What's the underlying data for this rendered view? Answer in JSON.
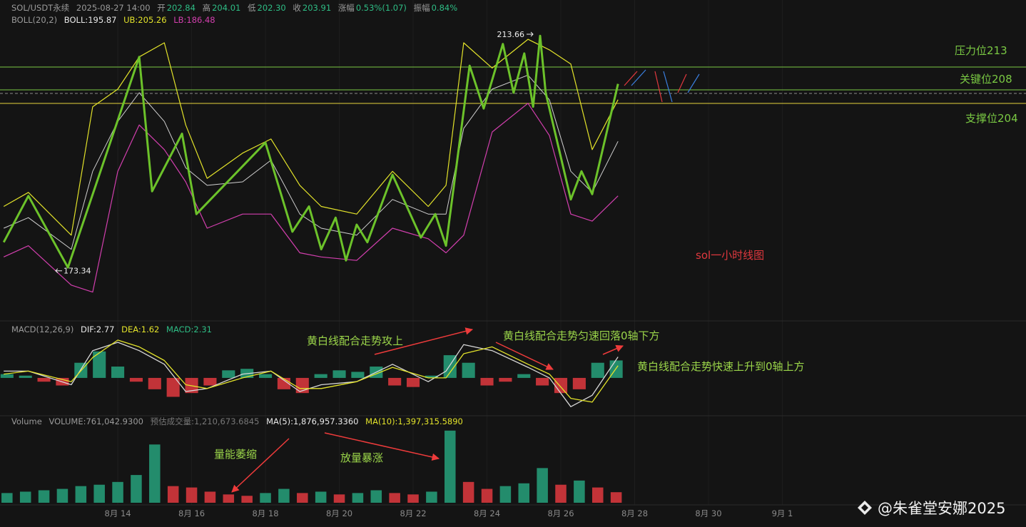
{
  "header": {
    "symbol": "SOL/USDT永续",
    "time": "2025-08-27 14:00",
    "open_label": "开",
    "open": "202.84",
    "high_label": "高",
    "high": "204.01",
    "low_label": "低",
    "low": "202.30",
    "close_label": "收",
    "close": "203.91",
    "change_label": "涨幅",
    "change": "0.53%(1.07)",
    "amplitude_label": "振幅",
    "amplitude": "0.84%"
  },
  "indicators": {
    "boll": "BOLL(20,2)",
    "boll_mid": "BOLL:195.87",
    "boll_ub": "UB:205.26",
    "boll_lb": "LB:186.48",
    "macd": "MACD(12,26,9)",
    "dif": "DIF:2.77",
    "dea": "DEA:1.62",
    "macd_value": "MACD:2.31",
    "volume": "Volume",
    "volume_value": "VOLUME:761,042.9300",
    "volume_est": "预估成交量:1,210,673.6845",
    "ma5": "MA(5):1,876,957.3360",
    "ma10": "MA(10):1,397,315.5890"
  },
  "annotations": {
    "resistance": "压力位213",
    "key": "关键位208",
    "support": "支撑位204",
    "chart_note": "sol一小时线图",
    "macd_up": "黄白线配合走势攻上",
    "macd_down": "黄白线配合走势匀速回落0轴下方",
    "macd_rise": "黄白线配合走势快速上升到0轴上方",
    "volume_shrink": "量能萎缩",
    "volume_surge": "放量暴涨",
    "watermark": "@朱雀堂安娜2025"
  },
  "chart_data": [
    {
      "type": "line",
      "xlim": [
        10.81,
        38.6
      ],
      "ylim": [
        165.4,
        219.5
      ],
      "xticks": [
        {
          "value": 14,
          "label": "8月 14"
        },
        {
          "value": 16,
          "label": "8月 16"
        },
        {
          "value": 18,
          "label": "8月 18"
        },
        {
          "value": 20,
          "label": "8月 20"
        },
        {
          "value": 22,
          "label": "8月 22"
        },
        {
          "value": 24,
          "label": "8月 24"
        },
        {
          "value": 26,
          "label": "8月 26"
        },
        {
          "value": 28,
          "label": "8月 28"
        },
        {
          "value": 30,
          "label": "8月 30"
        },
        {
          "value": 32,
          "label": "9月 1"
        }
      ],
      "series": [
        {
          "color": "#e3e32a",
          "x": [
            10.91,
            11.58,
            12.74,
            13.32,
            14.0,
            14.58,
            15.26,
            15.84,
            16.42,
            17.38,
            18.15,
            18.93,
            19.51,
            20.47,
            21.44,
            22.41,
            22.89,
            23.37,
            24.14,
            25.11,
            25.69,
            26.27,
            26.85,
            27.55
          ],
          "values": [
            184.3,
            186.7,
            179.4,
            201.3,
            204.3,
            209.8,
            212.2,
            198.2,
            189.1,
            193.4,
            195.8,
            187.9,
            184.3,
            183.0,
            190.3,
            184.3,
            187.9,
            212.2,
            207.9,
            212.8,
            211.0,
            208.6,
            194.0,
            202.5
          ]
        },
        {
          "color": "#cfcfcf",
          "x": [
            10.91,
            11.58,
            12.74,
            13.32,
            14.0,
            14.58,
            15.26,
            15.84,
            16.42,
            17.38,
            18.15,
            18.93,
            19.51,
            20.47,
            21.44,
            22.41,
            22.89,
            23.37,
            24.14,
            25.11,
            25.69,
            26.27,
            26.85,
            27.55
          ],
          "values": [
            180.6,
            182.4,
            177.0,
            190.3,
            198.8,
            203.7,
            198.8,
            190.9,
            187.9,
            188.5,
            192.2,
            183.0,
            180.6,
            179.4,
            185.5,
            183.0,
            183.0,
            197.6,
            204.3,
            206.7,
            202.5,
            190.3,
            186.7,
            195.4
          ]
        },
        {
          "color": "#d23fae",
          "x": [
            10.91,
            11.58,
            12.74,
            13.32,
            14.0,
            14.58,
            15.26,
            15.84,
            16.42,
            17.38,
            18.15,
            18.93,
            19.51,
            20.47,
            21.44,
            22.41,
            22.89,
            23.37,
            24.14,
            25.11,
            25.69,
            26.27,
            26.85,
            27.55
          ],
          "values": [
            175.7,
            177.6,
            170.9,
            169.7,
            190.3,
            198.2,
            194.0,
            188.5,
            180.6,
            183.0,
            183.0,
            176.4,
            175.7,
            175.1,
            180.6,
            178.8,
            176.4,
            179.4,
            197.0,
            201.9,
            196.4,
            183.0,
            181.8,
            186.1
          ]
        },
        {
          "color": "#6cc22a",
          "x": [
            10.91,
            11.58,
            12.65,
            14.58,
            14.93,
            15.74,
            16.13,
            18.0,
            18.73,
            19.18,
            19.51,
            19.9,
            20.18,
            20.47,
            20.76,
            21.44,
            22.21,
            22.6,
            22.89,
            23.53,
            23.91,
            24.43,
            24.72,
            25.01,
            25.25,
            25.44,
            25.59,
            26.27,
            26.56,
            26.85,
            27.55
          ],
          "values": [
            178.2,
            186.1,
            173.9,
            209.8,
            186.9,
            196.7,
            183.0,
            195.2,
            180.0,
            184.3,
            177.0,
            182.4,
            175.1,
            181.2,
            178.2,
            189.7,
            179.0,
            183.0,
            177.6,
            208.3,
            201.0,
            212.0,
            203.7,
            210.4,
            201.3,
            213.4,
            203.7,
            185.5,
            190.3,
            186.4,
            205.2
          ]
        }
      ],
      "max_label": {
        "x": 25.44,
        "value": 213.66
      },
      "min_label": {
        "x": 12.51,
        "value": 173.34
      }
    },
    {
      "type": "macd",
      "xlim": [
        10.81,
        38.6
      ],
      "ylim": [
        -5.0,
        6.4
      ],
      "series": [
        {
          "color": "#d8d8d8",
          "x": [
            10.91,
            11.58,
            12.74,
            13.32,
            14.0,
            14.58,
            15.26,
            15.84,
            16.42,
            17.38,
            18.15,
            18.93,
            19.51,
            20.47,
            21.44,
            22.41,
            22.89,
            23.37,
            24.14,
            25.11,
            25.69,
            26.27,
            26.85,
            27.55
          ],
          "values": [
            0.9,
            0.9,
            -0.9,
            3.6,
            4.7,
            3.6,
            1.8,
            -1.8,
            -1.4,
            0.5,
            0.9,
            -1.8,
            -0.9,
            -0.5,
            1.8,
            -0.5,
            0.9,
            4.4,
            3.6,
            1.4,
            0,
            -3.8,
            -2.3,
            2.77
          ]
        },
        {
          "color": "#e3e32a",
          "x": [
            10.91,
            11.58,
            12.74,
            13.32,
            14.0,
            14.58,
            15.26,
            15.84,
            16.42,
            17.38,
            18.15,
            18.93,
            19.51,
            20.47,
            21.44,
            22.41,
            22.89,
            23.37,
            24.14,
            25.11,
            25.69,
            26.27,
            26.85,
            27.55
          ],
          "values": [
            0.5,
            0.9,
            -0.5,
            2.7,
            5.0,
            4.1,
            2.3,
            -0.9,
            -1.4,
            0,
            0.9,
            -1.4,
            -1.4,
            -0.5,
            1.4,
            0,
            0,
            3.2,
            4.1,
            1.8,
            0.5,
            -2.7,
            -3.2,
            1.62
          ]
        }
      ],
      "histogram": {
        "up_color": "#26a17b",
        "down_color": "#e0383e",
        "x": [
          11.0,
          11.5,
          12.0,
          12.5,
          13.0,
          13.5,
          14.0,
          14.5,
          15.0,
          15.5,
          16.0,
          16.5,
          17.0,
          17.5,
          18.0,
          18.5,
          19.0,
          19.5,
          20.0,
          20.5,
          21.0,
          21.5,
          22.0,
          22.5,
          23.0,
          23.5,
          24.0,
          24.5,
          25.0,
          25.5,
          26.0,
          26.5,
          27.0,
          27.5
        ],
        "values": [
          0.5,
          0.3,
          -0.5,
          -1.0,
          2.0,
          3.5,
          1.5,
          -0.5,
          -1.5,
          -2.5,
          -2.0,
          -1.0,
          1.0,
          1.2,
          0.5,
          -1.5,
          -2.0,
          0.5,
          1.0,
          0.8,
          1.5,
          -1.0,
          -1.2,
          0.3,
          3.0,
          2.0,
          -1.0,
          -0.5,
          0.5,
          -1.0,
          -2.0,
          -1.5,
          2.0,
          2.31
        ]
      }
    },
    {
      "type": "bar",
      "xlim": [
        10.81,
        38.6
      ],
      "ylim": [
        0,
        5500000
      ],
      "up_color": "#26a17b",
      "down_color": "#e0383e",
      "x": [
        11.0,
        11.5,
        12.0,
        12.5,
        13.0,
        13.5,
        14.0,
        14.5,
        15.0,
        15.5,
        16.0,
        16.5,
        17.0,
        17.5,
        18.0,
        18.5,
        19.0,
        19.5,
        20.0,
        20.5,
        21.0,
        21.5,
        22.0,
        22.5,
        23.0,
        23.5,
        24.0,
        24.5,
        25.0,
        25.5,
        26.0,
        26.5,
        27.0,
        27.5
      ],
      "values": [
        700000,
        800000,
        900000,
        1000000,
        1200000,
        1300000,
        1500000,
        2000000,
        4200000,
        1200000,
        1100000,
        800000,
        600000,
        500000,
        700000,
        1000000,
        700000,
        800000,
        600000,
        700000,
        900000,
        700000,
        600000,
        800000,
        5200000,
        1500000,
        1000000,
        1200000,
        1400000,
        2500000,
        1300000,
        1600000,
        1100000,
        761042.93
      ]
    }
  ]
}
